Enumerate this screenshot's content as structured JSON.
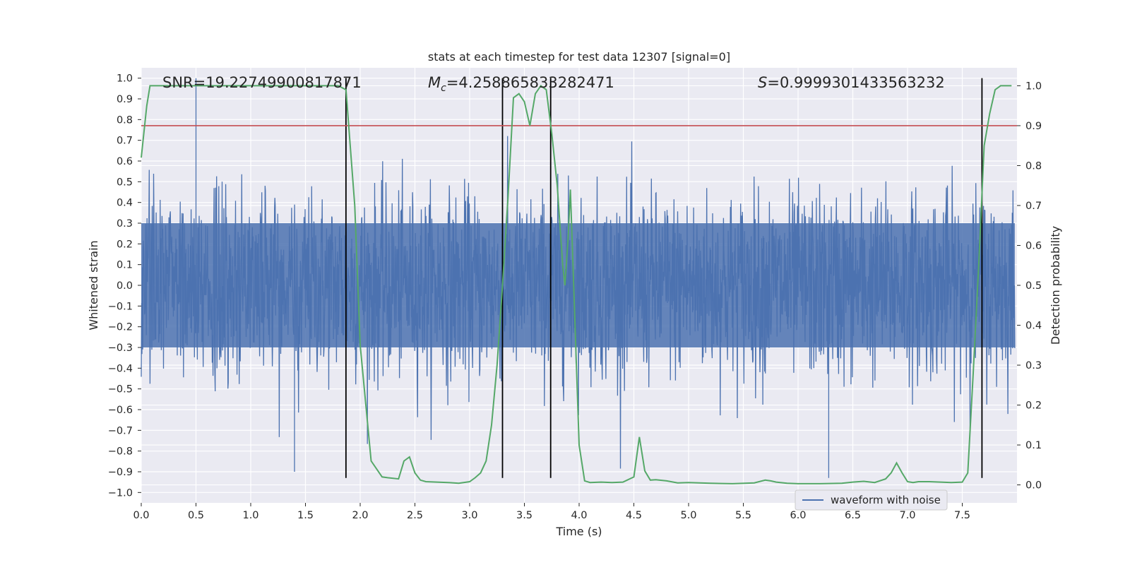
{
  "chart_data": {
    "type": "line",
    "title": "stats at each timestep for test data 12307 [signal=0]",
    "xlabel": "Time (s)",
    "ylabel": "Whitened strain",
    "ylabel_right": "Detection probability",
    "xlim": [
      0.0,
      8.0
    ],
    "ylim": [
      -1.05,
      1.05
    ],
    "ylim_right": [
      -0.045,
      1.045
    ],
    "x_ticks": [
      "0.0",
      "0.5",
      "1.0",
      "1.5",
      "2.0",
      "2.5",
      "3.0",
      "3.5",
      "4.0",
      "4.5",
      "5.0",
      "5.5",
      "6.0",
      "6.5",
      "7.0",
      "7.5"
    ],
    "y_ticks": [
      "1.0",
      "0.9",
      "0.8",
      "0.7",
      "0.6",
      "0.5",
      "0.4",
      "0.3",
      "0.2",
      "0.1",
      "0.0",
      "−0.1",
      "−0.2",
      "−0.3",
      "−0.4",
      "−0.5",
      "−0.6",
      "−0.7",
      "−0.8",
      "−0.9",
      "−1.0"
    ],
    "y_ticks_right": [
      "0.0",
      "0.1",
      "0.2",
      "0.3",
      "0.4",
      "0.5",
      "0.6",
      "0.7",
      "0.8",
      "0.9",
      "1.0"
    ],
    "grid": true,
    "legend_position": "bottom-right",
    "annotations": {
      "snr": "SNR=19.22749900817871",
      "mc_symbol": "M",
      "mc_subscript": "c",
      "mc_value": "=4.258865833282471",
      "s_symbol": "S",
      "s_value": "=0.9999301433563232"
    },
    "series": [
      {
        "name": "waveform with noise",
        "color": "#4c72b0",
        "axis": "left",
        "description_range": [
          -0.93,
          1.0
        ]
      },
      {
        "color": "#55a868",
        "axis": "right",
        "x": [
          0.0,
          0.05,
          0.08,
          0.15,
          0.3,
          0.6,
          0.9,
          1.2,
          1.5,
          1.7,
          1.8,
          1.87,
          1.95,
          2.0,
          2.1,
          2.2,
          2.25,
          2.35,
          2.4,
          2.45,
          2.5,
          2.55,
          2.6,
          2.7,
          2.8,
          2.9,
          3.0,
          3.05,
          3.1,
          3.15,
          3.2,
          3.25,
          3.3,
          3.35,
          3.4,
          3.45,
          3.5,
          3.55,
          3.6,
          3.65,
          3.7,
          3.75,
          3.8,
          3.85,
          3.87,
          3.9,
          3.92,
          3.95,
          4.0,
          4.05,
          4.1,
          4.2,
          4.3,
          4.4,
          4.5,
          4.55,
          4.6,
          4.65,
          4.7,
          4.8,
          4.9,
          5.0,
          5.2,
          5.4,
          5.6,
          5.7,
          5.75,
          5.8,
          5.9,
          6.0,
          6.2,
          6.4,
          6.5,
          6.6,
          6.7,
          6.8,
          6.85,
          6.9,
          6.95,
          7.0,
          7.05,
          7.1,
          7.2,
          7.3,
          7.4,
          7.5,
          7.55,
          7.6,
          7.65,
          7.7,
          7.75,
          7.8,
          7.85,
          7.9,
          7.95
        ],
        "values": [
          0.82,
          0.95,
          1.0,
          1.0,
          1.0,
          1.0,
          1.0,
          1.0,
          1.0,
          1.0,
          1.0,
          0.99,
          0.7,
          0.35,
          0.06,
          0.02,
          0.018,
          0.015,
          0.06,
          0.07,
          0.03,
          0.012,
          0.008,
          0.007,
          0.006,
          0.004,
          0.008,
          0.018,
          0.03,
          0.06,
          0.15,
          0.3,
          0.5,
          0.72,
          0.97,
          0.98,
          0.96,
          0.9,
          0.98,
          1.0,
          0.99,
          0.88,
          0.75,
          0.55,
          0.5,
          0.62,
          0.74,
          0.5,
          0.1,
          0.01,
          0.006,
          0.007,
          0.006,
          0.007,
          0.02,
          0.12,
          0.035,
          0.012,
          0.013,
          0.01,
          0.005,
          0.006,
          0.004,
          0.003,
          0.005,
          0.012,
          0.01,
          0.007,
          0.004,
          0.003,
          0.003,
          0.004,
          0.007,
          0.009,
          0.006,
          0.015,
          0.03,
          0.055,
          0.03,
          0.008,
          0.006,
          0.008,
          0.008,
          0.007,
          0.006,
          0.007,
          0.03,
          0.28,
          0.55,
          0.85,
          0.93,
          0.99,
          1.0,
          1.0,
          1.0
        ]
      },
      {
        "color": "#c44e52",
        "axis": "right",
        "values": [
          0.9
        ],
        "kind": "threshold"
      },
      {
        "color": "#000000",
        "kind": "vertical-markers",
        "x": [
          1.87,
          3.3,
          3.74,
          7.68
        ],
        "y_range": [
          -0.93,
          1.0
        ]
      }
    ]
  },
  "colors": {
    "plot_background": "#eaeaf2",
    "grid": "#ffffff",
    "waveform": "#4c72b0",
    "probability": "#55a868",
    "threshold": "#c44e52",
    "markers": "#000000"
  }
}
